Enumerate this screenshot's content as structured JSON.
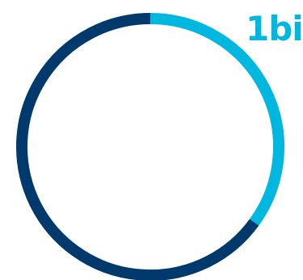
{
  "chart_data": {
    "type": "pie",
    "categories": [
      "",
      ""
    ],
    "values": [
      0.35,
      0.65
    ],
    "colors": [
      "#00b7e0",
      "#003a6d"
    ],
    "annotations": [
      "1bi"
    ],
    "legend": "none"
  },
  "label": {
    "text": "1bi",
    "color": "#00b7e0"
  }
}
